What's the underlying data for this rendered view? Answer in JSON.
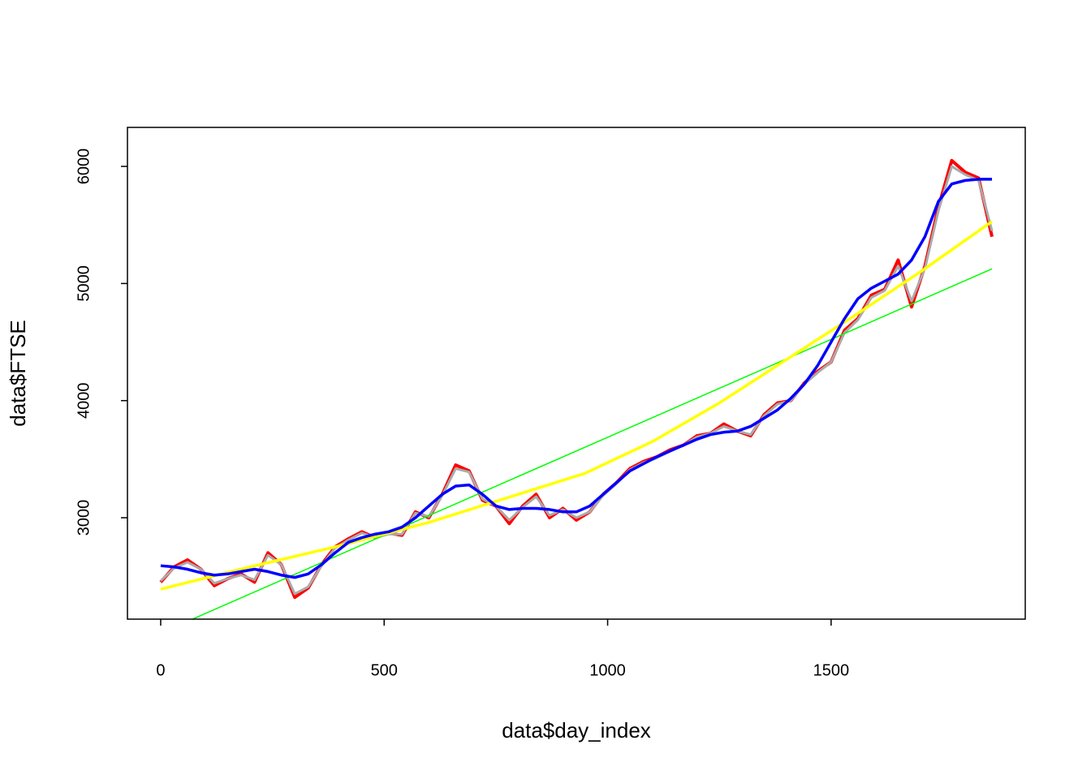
{
  "chart_data": {
    "type": "line",
    "xlabel": "data$day_index",
    "ylabel": "data$FTSE",
    "xlim": [
      -74.4,
      1934.4
    ],
    "ylim": [
      2134,
      6333
    ],
    "xticks": [
      0,
      500,
      1000,
      1500
    ],
    "yticks": [
      3000,
      4000,
      5000,
      6000
    ],
    "series": [
      {
        "color": "#ff0000",
        "width": 4,
        "x": [
          0,
          30,
          60,
          90,
          120,
          150,
          180,
          210,
          240,
          270,
          300,
          330,
          360,
          390,
          420,
          450,
          480,
          510,
          540,
          570,
          600,
          630,
          660,
          690,
          720,
          750,
          780,
          810,
          840,
          870,
          900,
          930,
          960,
          990,
          1020,
          1050,
          1080,
          1110,
          1140,
          1170,
          1200,
          1230,
          1260,
          1290,
          1320,
          1350,
          1380,
          1410,
          1440,
          1470,
          1500,
          1530,
          1560,
          1590,
          1620,
          1650,
          1680,
          1710,
          1740,
          1770,
          1800,
          1830,
          1860
        ],
        "values": [
          2450,
          2580,
          2640,
          2560,
          2420,
          2480,
          2520,
          2450,
          2700,
          2600,
          2320,
          2400,
          2600,
          2750,
          2820,
          2880,
          2830,
          2870,
          2850,
          3050,
          3000,
          3200,
          3450,
          3400,
          3150,
          3100,
          2950,
          3100,
          3200,
          3000,
          3080,
          2980,
          3050,
          3200,
          3300,
          3420,
          3480,
          3520,
          3580,
          3620,
          3700,
          3720,
          3800,
          3740,
          3700,
          3880,
          3980,
          4000,
          4150,
          4250,
          4330,
          4600,
          4700,
          4900,
          4950,
          5200,
          4800,
          5150,
          5650,
          6050,
          5950,
          5900,
          5400
        ]
      },
      {
        "color": "#aaaaaa",
        "width": 3,
        "x": [
          0,
          30,
          60,
          90,
          120,
          150,
          180,
          210,
          240,
          270,
          300,
          330,
          360,
          390,
          420,
          450,
          480,
          510,
          540,
          570,
          600,
          630,
          660,
          690,
          720,
          750,
          780,
          810,
          840,
          870,
          900,
          930,
          960,
          990,
          1020,
          1050,
          1080,
          1110,
          1140,
          1170,
          1200,
          1230,
          1260,
          1290,
          1320,
          1350,
          1380,
          1410,
          1440,
          1470,
          1500,
          1530,
          1560,
          1590,
          1620,
          1650,
          1680,
          1710,
          1740,
          1770,
          1800,
          1830,
          1860
        ],
        "values": [
          2460,
          2570,
          2620,
          2560,
          2440,
          2480,
          2510,
          2470,
          2680,
          2600,
          2350,
          2410,
          2590,
          2740,
          2810,
          2870,
          2830,
          2860,
          2860,
          3040,
          3010,
          3190,
          3420,
          3390,
          3160,
          3100,
          2980,
          3090,
          3180,
          3020,
          3070,
          3000,
          3050,
          3190,
          3290,
          3410,
          3470,
          3510,
          3570,
          3620,
          3690,
          3720,
          3780,
          3740,
          3710,
          3870,
          3970,
          4000,
          4140,
          4240,
          4330,
          4580,
          4690,
          4880,
          4940,
          5150,
          4850,
          5130,
          5620,
          6000,
          5930,
          5880,
          5450
        ]
      },
      {
        "color": "#00ff00",
        "width": 1.5,
        "x": [
          0,
          1860
        ],
        "values": [
          2015,
          5125
        ]
      },
      {
        "color": "#ffff00",
        "width": 3.5,
        "x": [
          0,
          200,
          400,
          600,
          800,
          950,
          1100,
          1250,
          1400,
          1550,
          1700,
          1860
        ],
        "values": [
          2390,
          2580,
          2760,
          2960,
          3200,
          3380,
          3650,
          3980,
          4350,
          4720,
          5100,
          5530
        ]
      },
      {
        "color": "#0000ff",
        "width": 3.5,
        "x": [
          0,
          30,
          60,
          90,
          120,
          150,
          180,
          210,
          240,
          270,
          300,
          330,
          360,
          390,
          420,
          450,
          480,
          510,
          540,
          570,
          600,
          630,
          660,
          690,
          720,
          750,
          780,
          810,
          840,
          870,
          900,
          930,
          960,
          990,
          1020,
          1050,
          1080,
          1110,
          1140,
          1170,
          1200,
          1230,
          1260,
          1290,
          1320,
          1350,
          1380,
          1410,
          1440,
          1470,
          1500,
          1530,
          1560,
          1590,
          1620,
          1650,
          1680,
          1710,
          1740,
          1770,
          1800,
          1830,
          1860
        ],
        "values": [
          2590,
          2580,
          2560,
          2530,
          2510,
          2520,
          2540,
          2560,
          2540,
          2510,
          2490,
          2520,
          2600,
          2700,
          2790,
          2830,
          2860,
          2880,
          2920,
          3000,
          3100,
          3200,
          3270,
          3280,
          3200,
          3100,
          3070,
          3080,
          3080,
          3070,
          3050,
          3050,
          3100,
          3200,
          3300,
          3400,
          3460,
          3520,
          3570,
          3620,
          3670,
          3710,
          3730,
          3740,
          3780,
          3850,
          3920,
          4020,
          4140,
          4300,
          4500,
          4700,
          4870,
          4960,
          5020,
          5080,
          5200,
          5400,
          5700,
          5850,
          5880,
          5890,
          5890
        ]
      }
    ]
  }
}
